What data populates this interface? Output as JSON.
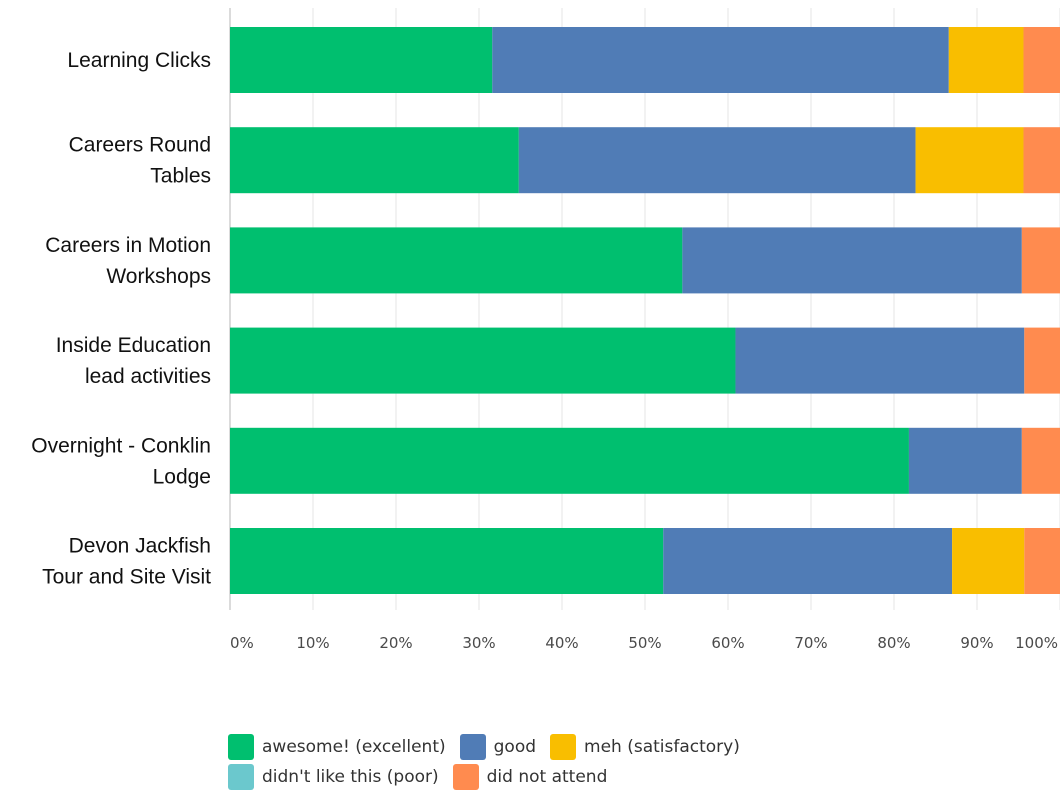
{
  "chart_data": {
    "type": "bar",
    "orientation": "horizontal",
    "stacked": true,
    "categories": [
      [
        "Learning Clicks"
      ],
      [
        "Careers Round",
        "Tables"
      ],
      [
        "Careers in Motion",
        "Workshops"
      ],
      [
        "Inside Education",
        "lead activities"
      ],
      [
        "Overnight - Conklin",
        "Lodge"
      ],
      [
        "Devon Jackfish",
        "Tour and Site Visit"
      ]
    ],
    "series": [
      {
        "name": "awesome! (excellent)",
        "color": "#00bf6f",
        "values": [
          31.6,
          34.8,
          54.5,
          60.9,
          81.8,
          52.2
        ]
      },
      {
        "name": "good",
        "color": "#507cb6",
        "values": [
          55.0,
          47.8,
          40.9,
          34.8,
          13.6,
          34.8
        ]
      },
      {
        "name": "meh (satisfactory)",
        "color": "#f9be00",
        "values": [
          9.0,
          13.0,
          0,
          0,
          0,
          8.7
        ]
      },
      {
        "name": "didn't like this (poor)",
        "color": "#6bc8cd",
        "values": [
          0,
          0,
          0,
          0,
          0,
          0
        ]
      },
      {
        "name": "did not attend",
        "color": "#ff8b4f",
        "values": [
          4.4,
          4.4,
          4.6,
          4.3,
          4.6,
          4.3
        ]
      }
    ],
    "x_ticks": [
      "0%",
      "10%",
      "20%",
      "30%",
      "40%",
      "50%",
      "60%",
      "70%",
      "80%",
      "90%",
      "100%"
    ],
    "xlim": [
      0,
      100
    ],
    "grid": true,
    "legend_position": "bottom",
    "title": "",
    "xlabel": "",
    "ylabel": ""
  }
}
